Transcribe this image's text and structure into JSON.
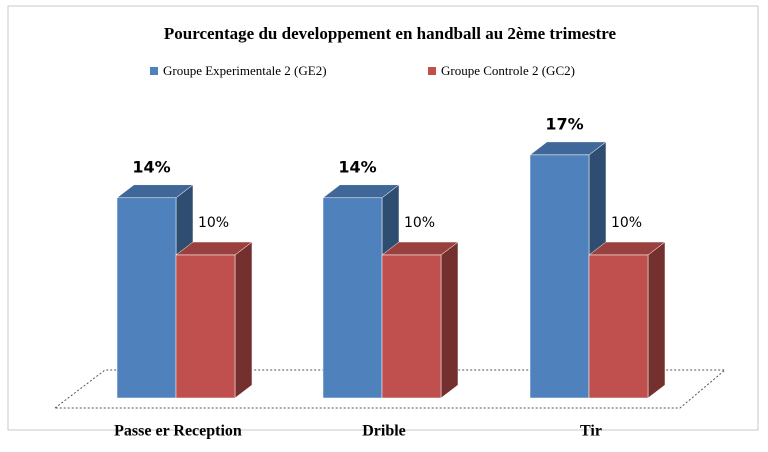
{
  "chart_data": {
    "type": "bar3d",
    "title": "Pourcentage du developpement en handball au 2ème trimestre",
    "categories": [
      "Passe er Reception",
      "Drible",
      "Tir"
    ],
    "series": [
      {
        "name": "Groupe Experimentale 2 (GE2)",
        "color": "#4f81bd",
        "values": [
          14,
          14,
          17
        ],
        "value_labels": [
          "14%",
          "14%",
          "17%"
        ]
      },
      {
        "name": "Groupe Controle 2 (GC2)",
        "color": "#c0504d",
        "values": [
          10,
          10,
          10
        ],
        "value_labels": [
          "10%",
          "10%",
          "10%"
        ]
      }
    ]
  }
}
